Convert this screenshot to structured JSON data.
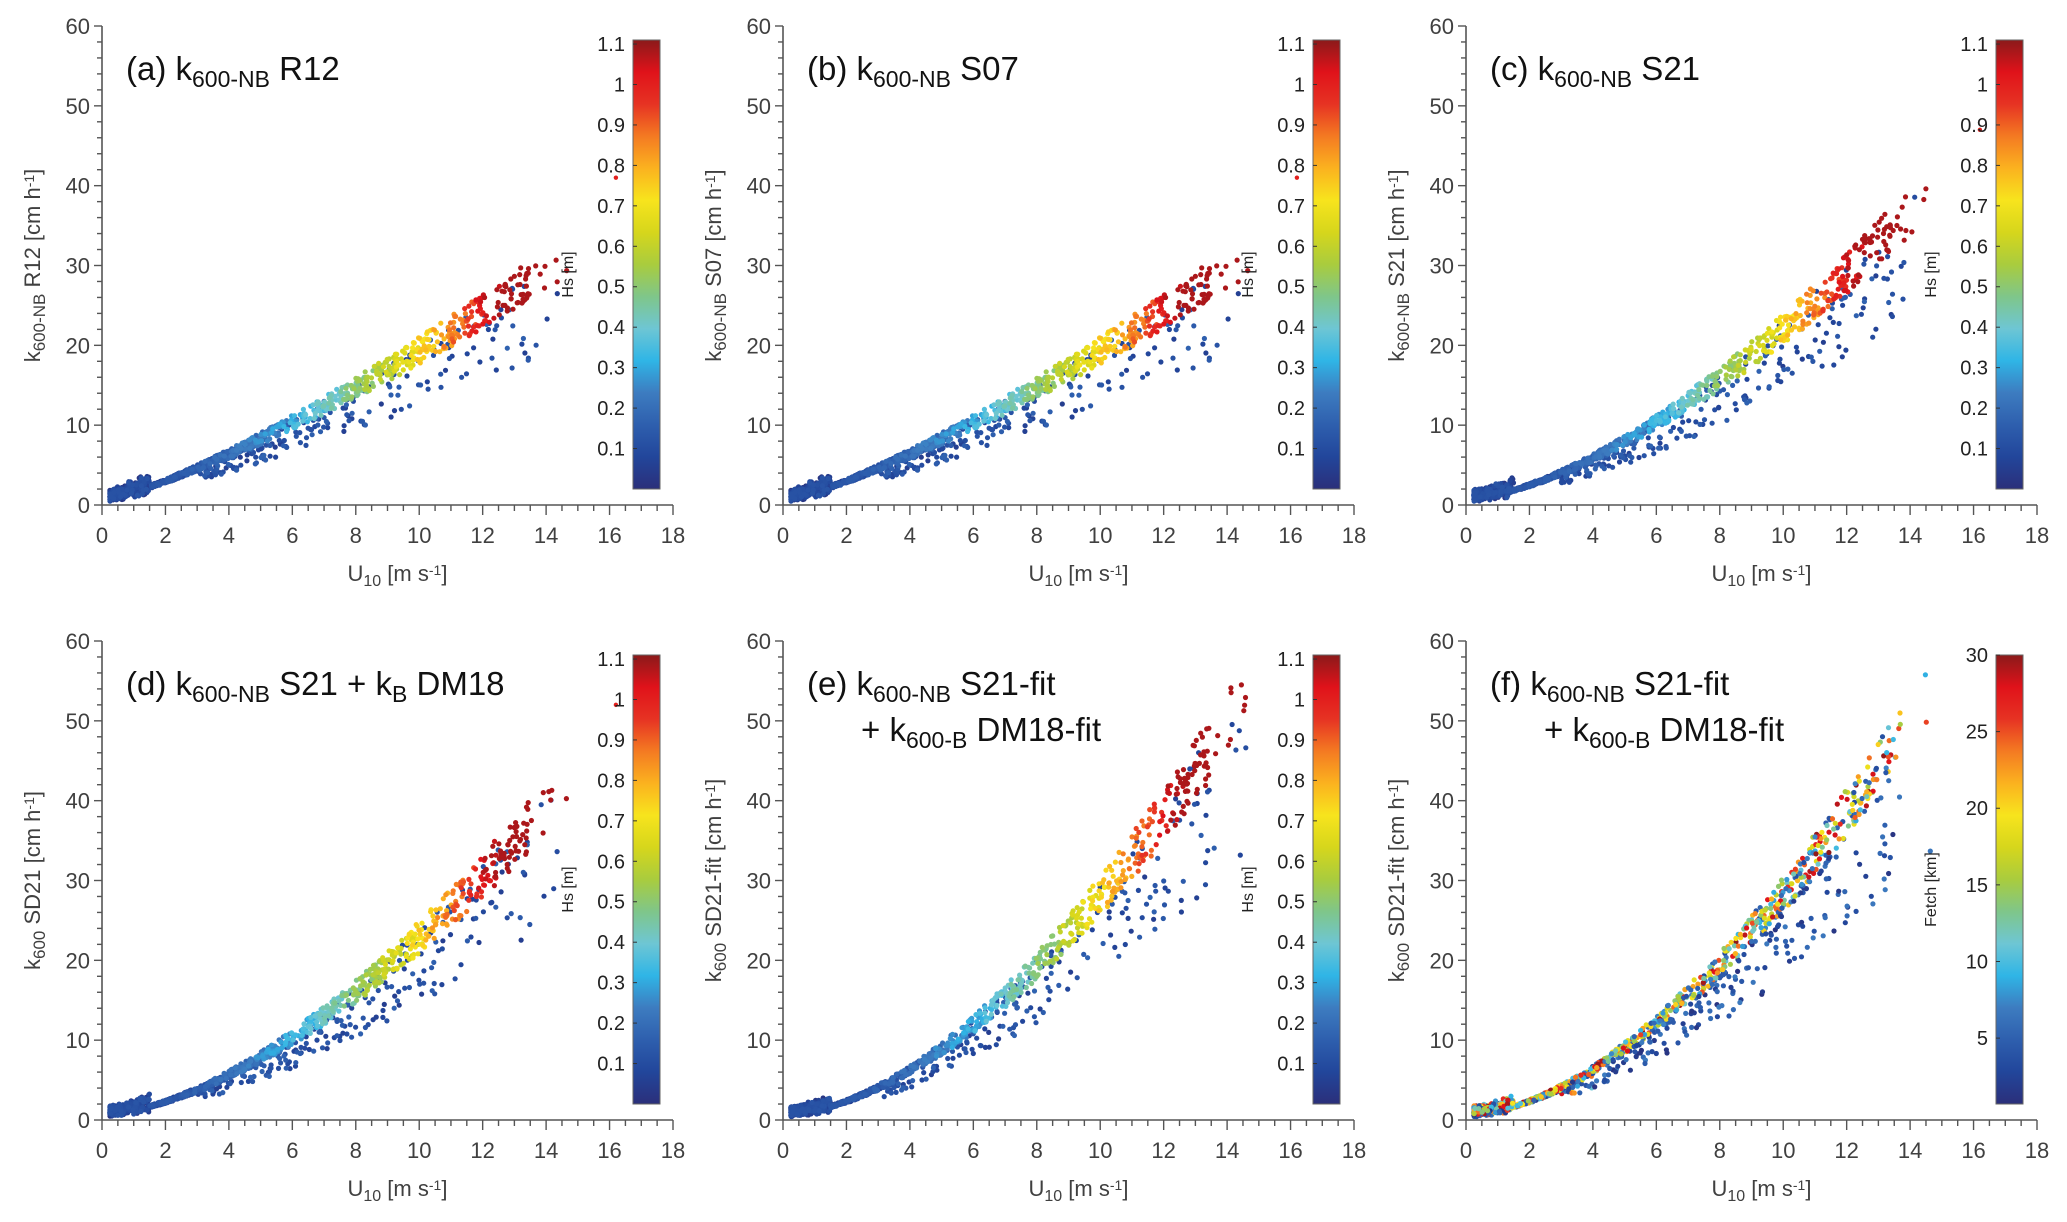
{
  "figure": {
    "panel_count": 6
  },
  "colormaps": {
    "jet_like": [
      "#2b2f7a",
      "#22469b",
      "#2e5fae",
      "#3d7cc0",
      "#2fb5e6",
      "#6ec6d4",
      "#7fc68a",
      "#a9cc3e",
      "#d6d61c",
      "#f7e41d",
      "#fbb21f",
      "#f47a22",
      "#e63323",
      "#e0121a",
      "#8b1a1a"
    ]
  },
  "chart_data": [
    {
      "id": "a",
      "type": "scatter",
      "title_prefix": "(a) k",
      "title_sub": "600-NB",
      "title_suffix": " R12",
      "title_line2_prefix": "",
      "title_line2_sub": "",
      "title_line2_suffix": "",
      "ylabel_main": "k",
      "ylabel_sub": "600-NB",
      "ylabel_rest": " R12 [cm h",
      "ylabel_sup": "-1",
      "ylabel_end": "]",
      "xlabel_main": "U",
      "xlabel_sub": "10",
      "xlabel_rest": " [m s",
      "xlabel_sup": "-1",
      "xlabel_end": "]",
      "xlim": [
        0,
        18
      ],
      "ylim": [
        0,
        60
      ],
      "xticks": [
        "0",
        "2",
        "4",
        "6",
        "8",
        "10",
        "12",
        "14",
        "16",
        "18"
      ],
      "yticks": [
        "0",
        "10",
        "20",
        "30",
        "40",
        "50",
        "60"
      ],
      "colorbar": {
        "label": "Hs [m]",
        "range": [
          0.0,
          1.11
        ],
        "ticks": [
          "0.1",
          "0.2",
          "0.3",
          "0.4",
          "0.5",
          "0.6",
          "0.7",
          "0.8",
          "0.9",
          "1",
          "1.1"
        ],
        "tick_values": [
          0.1,
          0.2,
          0.3,
          0.4,
          0.5,
          0.6,
          0.7,
          0.8,
          0.9,
          1.0,
          1.1
        ]
      },
      "model": {
        "a": 0.95,
        "b": 1.28,
        "c": 0.6,
        "max_u": 14.7,
        "top_y": 34,
        "color_var": "Hs",
        "spread": 0.35,
        "seed": 11
      },
      "outlier_stray": {
        "x": 16.2,
        "y": 41,
        "value": 1.0
      }
    },
    {
      "id": "b",
      "type": "scatter",
      "title_prefix": "(b) k",
      "title_sub": "600-NB",
      "title_suffix": " S07",
      "title_line2_prefix": "",
      "title_line2_sub": "",
      "title_line2_suffix": "",
      "ylabel_main": "k",
      "ylabel_sub": "600-NB",
      "ylabel_rest": " S07 [cm h",
      "ylabel_sup": "-1",
      "ylabel_end": "]",
      "xlabel_main": "U",
      "xlabel_sub": "10",
      "xlabel_rest": " [m s",
      "xlabel_sup": "-1",
      "xlabel_end": "]",
      "xlim": [
        0,
        18
      ],
      "ylim": [
        0,
        60
      ],
      "xticks": [
        "0",
        "2",
        "4",
        "6",
        "8",
        "10",
        "12",
        "14",
        "16",
        "18"
      ],
      "yticks": [
        "0",
        "10",
        "20",
        "30",
        "40",
        "50",
        "60"
      ],
      "colorbar": {
        "label": "Hs [m]",
        "range": [
          0.0,
          1.11
        ],
        "ticks": [
          "0.1",
          "0.2",
          "0.3",
          "0.4",
          "0.5",
          "0.6",
          "0.7",
          "0.8",
          "0.9",
          "1",
          "1.1"
        ],
        "tick_values": [
          0.1,
          0.2,
          0.3,
          0.4,
          0.5,
          0.6,
          0.7,
          0.8,
          0.9,
          1.0,
          1.1
        ]
      },
      "model": {
        "a": 0.95,
        "b": 1.28,
        "c": 0.6,
        "max_u": 14.7,
        "top_y": 34,
        "color_var": "Hs",
        "spread": 0.35,
        "seed": 11
      },
      "outlier_stray": {
        "x": 16.2,
        "y": 41,
        "value": 1.0
      }
    },
    {
      "id": "c",
      "type": "scatter",
      "title_prefix": "(c) k",
      "title_sub": "600-NB",
      "title_suffix": " S21",
      "title_line2_prefix": "",
      "title_line2_sub": "",
      "title_line2_suffix": "",
      "ylabel_main": "k",
      "ylabel_sub": "600-NB",
      "ylabel_rest": " S21 [cm h",
      "ylabel_sup": "-1",
      "ylabel_end": "]",
      "xlabel_main": "U",
      "xlabel_sub": "10",
      "xlabel_rest": " [m s",
      "xlabel_sup": "-1",
      "xlabel_end": "]",
      "xlim": [
        0,
        18
      ],
      "ylim": [
        0,
        60
      ],
      "xticks": [
        "0",
        "2",
        "4",
        "6",
        "8",
        "10",
        "12",
        "14",
        "16",
        "18"
      ],
      "yticks": [
        "0",
        "10",
        "20",
        "30",
        "40",
        "50",
        "60"
      ],
      "colorbar": {
        "label": "Hs [m]",
        "range": [
          0.0,
          1.11
        ],
        "ticks": [
          "0.1",
          "0.2",
          "0.3",
          "0.4",
          "0.5",
          "0.6",
          "0.7",
          "0.8",
          "0.9",
          "1",
          "1.1"
        ],
        "tick_values": [
          0.1,
          0.2,
          0.3,
          0.4,
          0.5,
          0.6,
          0.7,
          0.8,
          0.9,
          1.0,
          1.1
        ]
      },
      "model": {
        "a": 0.5,
        "b": 1.55,
        "c": 0.6,
        "max_u": 14.7,
        "top_y": 43,
        "color_var": "Hs",
        "spread": 0.45,
        "seed": 23
      },
      "outlier_stray": {
        "x": 16.2,
        "y": 47,
        "value": 1.0
      }
    },
    {
      "id": "d",
      "type": "scatter",
      "title_prefix": "(d) k",
      "title_sub": "600-NB",
      "title_suffix": " S21 + k",
      "title_sub2": "B",
      "title_suffix2": " DM18",
      "title_line2_prefix": "",
      "title_line2_sub": "",
      "title_line2_suffix": "",
      "ylabel_main": "k",
      "ylabel_sub": "600",
      "ylabel_rest": " SD21  [cm h",
      "ylabel_sup": "-1",
      "ylabel_end": "]",
      "xlabel_main": "U",
      "xlabel_sub": "10",
      "xlabel_rest": " [m s",
      "xlabel_sup": "-1",
      "xlabel_end": "]",
      "xlim": [
        0,
        18
      ],
      "ylim": [
        0,
        60
      ],
      "xticks": [
        "0",
        "2",
        "4",
        "6",
        "8",
        "10",
        "12",
        "14",
        "16",
        "18"
      ],
      "yticks": [
        "0",
        "10",
        "20",
        "30",
        "40",
        "50",
        "60"
      ],
      "colorbar": {
        "label": "Hs [m]",
        "range": [
          0.0,
          1.11
        ],
        "ticks": [
          "0.1",
          "0.2",
          "0.3",
          "0.4",
          "0.5",
          "0.6",
          "0.7",
          "0.8",
          "0.9",
          "1",
          "1.1"
        ],
        "tick_values": [
          0.1,
          0.2,
          0.3,
          0.4,
          0.5,
          0.6,
          0.7,
          0.8,
          0.9,
          1.0,
          1.1
        ]
      },
      "model": {
        "a": 0.46,
        "b": 1.63,
        "c": 0.6,
        "max_u": 14.7,
        "top_y": 46,
        "color_var": "Hs",
        "spread": 0.5,
        "seed": 37
      },
      "outlier_stray": {
        "x": 16.2,
        "y": 52,
        "value": 1.0
      }
    },
    {
      "id": "e",
      "type": "scatter",
      "title_prefix": "(e) k",
      "title_sub": "600-NB",
      "title_suffix": " S21-fit",
      "title_line2_prefix": "+ k",
      "title_line2_sub": "600-B",
      "title_line2_suffix": " DM18-fit",
      "ylabel_main": "k",
      "ylabel_sub": "600",
      "ylabel_rest": " SD21-fit [cm h",
      "ylabel_sup": "-1",
      "ylabel_end": "]",
      "xlabel_main": "U",
      "xlabel_sub": "10",
      "xlabel_rest": " [m s",
      "xlabel_sup": "-1",
      "xlabel_end": "]",
      "xlim": [
        0,
        18
      ],
      "ylim": [
        0,
        60
      ],
      "xticks": [
        "0",
        "2",
        "4",
        "6",
        "8",
        "10",
        "12",
        "14",
        "16",
        "18"
      ],
      "yticks": [
        "0",
        "10",
        "20",
        "30",
        "40",
        "50",
        "60"
      ],
      "colorbar": {
        "label": "Hs [m]",
        "range": [
          0.0,
          1.11
        ],
        "ticks": [
          "0.1",
          "0.2",
          "0.3",
          "0.4",
          "0.5",
          "0.6",
          "0.7",
          "0.8",
          "0.9",
          "1",
          "1.1"
        ],
        "tick_values": [
          0.1,
          0.2,
          0.3,
          0.4,
          0.5,
          0.6,
          0.7,
          0.8,
          0.9,
          1.0,
          1.1
        ]
      },
      "model": {
        "a": 0.5,
        "b": 1.72,
        "c": 0.6,
        "max_u": 14.7,
        "top_y": 58.5,
        "color_var": "Hs",
        "spread": 0.55,
        "seed": 41
      },
      "outlier_stray": null
    },
    {
      "id": "f",
      "type": "scatter",
      "title_prefix": "(f) k",
      "title_sub": "600-NB",
      "title_suffix": " S21-fit",
      "title_line2_prefix": "+ k",
      "title_line2_sub": "600-B",
      "title_line2_suffix": " DM18-fit",
      "ylabel_main": "k",
      "ylabel_sub": "600",
      "ylabel_rest": " SD21-fit [cm h",
      "ylabel_sup": "-1",
      "ylabel_end": "]",
      "xlabel_main": "U",
      "xlabel_sub": "10",
      "xlabel_rest": " [m s",
      "xlabel_sup": "-1",
      "xlabel_end": "]",
      "xlim": [
        0,
        18
      ],
      "ylim": [
        0,
        60
      ],
      "xticks": [
        "0",
        "2",
        "4",
        "6",
        "8",
        "10",
        "12",
        "14",
        "16",
        "18"
      ],
      "yticks": [
        "0",
        "10",
        "20",
        "30",
        "40",
        "50",
        "60"
      ],
      "colorbar": {
        "label": "Fetch [km]",
        "range": [
          0.7,
          30
        ],
        "ticks": [
          "5",
          "10",
          "15",
          "20",
          "25",
          "30"
        ],
        "tick_values": [
          5,
          10,
          15,
          20,
          25,
          30
        ]
      },
      "model": {
        "a": 0.5,
        "b": 1.72,
        "c": 0.6,
        "max_u": 14.7,
        "top_y": 58.5,
        "color_var": "Fetch",
        "spread": 0.55,
        "seed": 41
      },
      "outlier_stray": null
    }
  ]
}
